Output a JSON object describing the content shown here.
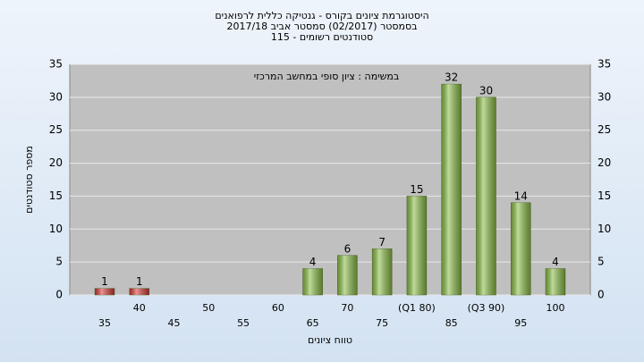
{
  "chart_data": {
    "type": "bar",
    "title": "היסטוגרמת ציונים בקורס - גנטיקה כללית לרפואנים",
    "subtitle": "בסמסטר  (02/2017)  סמסטר אביב 2017/18",
    "subtitle2": "סטודנטים רשומים - 115",
    "annotation": "במשימה : ציון סופי במחשב המרכזי",
    "x_label": "טווח ציונים",
    "y_label": "מספר סטודנטים",
    "categories": [
      "35",
      "40",
      "45",
      "50",
      "55",
      "60",
      "65",
      "70",
      "75",
      "(Q1 80)",
      "85",
      "(Q3 90)",
      "95",
      "100"
    ],
    "values": [
      1,
      1,
      0,
      0,
      0,
      0,
      4,
      6,
      7,
      15,
      32,
      30,
      14,
      4
    ],
    "colors": [
      "#d83a3a",
      "#d83a3a",
      "#8cbf48",
      "#8cbf48",
      "#8cbf48",
      "#8cbf48",
      "#8cbf48",
      "#8cbf48",
      "#8cbf48",
      "#8cbf48",
      "#8cbf48",
      "#8cbf48",
      "#8cbf48",
      "#8cbf48"
    ],
    "ylim": [
      0,
      35
    ],
    "yticks": [
      0,
      5,
      10,
      15,
      20,
      25,
      30,
      35
    ],
    "grid": true
  }
}
